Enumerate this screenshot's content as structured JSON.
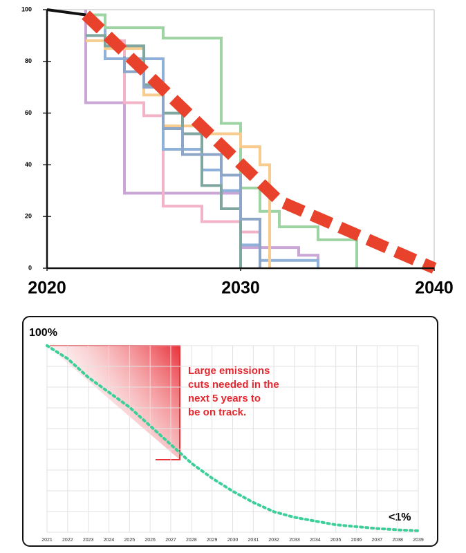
{
  "chart_data": [
    {
      "type": "line",
      "xlim": [
        2020,
        2040
      ],
      "ylim": [
        0,
        100
      ],
      "xticks": [
        2020,
        2030,
        2040
      ],
      "yticks": [
        0,
        20,
        40,
        60,
        80,
        100
      ],
      "series": [
        {
          "name": null,
          "color": "#c9a6d6",
          "x": [
            2022,
            2022,
            2024,
            2024,
            2030,
            2030,
            2033,
            2033,
            2034,
            2034
          ],
          "values": [
            100,
            64,
            64,
            29,
            29,
            8,
            8,
            5,
            5,
            0
          ]
        },
        {
          "name": null,
          "color": "#f2b3c7",
          "x": [
            2022,
            2023,
            2023,
            2024,
            2024,
            2025,
            2025,
            2026,
            2026,
            2028,
            2028,
            2030,
            2030,
            2031,
            2031
          ],
          "values": [
            98,
            98,
            88,
            88,
            64,
            64,
            59,
            59,
            24,
            24,
            18,
            18,
            14,
            14,
            0
          ]
        },
        {
          "name": null,
          "color": "#8fb0d9",
          "x": [
            2023,
            2023,
            2026,
            2026,
            2028,
            2028,
            2029,
            2029,
            2030,
            2030,
            2031,
            2031,
            2034,
            2034
          ],
          "values": [
            96,
            81,
            81,
            46,
            46,
            38,
            38,
            30,
            30,
            9,
            9,
            3,
            3,
            0
          ]
        },
        {
          "name": null,
          "color": "#9ed3a4",
          "x": [
            2022,
            2023,
            2023,
            2026,
            2026,
            2029,
            2029,
            2030,
            2030,
            2031,
            2031,
            2032,
            2032,
            2034,
            2034,
            2036,
            2036
          ],
          "values": [
            98,
            98,
            93,
            93,
            89,
            89,
            56,
            56,
            31,
            31,
            22,
            22,
            16,
            16,
            11,
            11,
            0
          ]
        },
        {
          "name": null,
          "color": "#f8cc8e",
          "x": [
            2022,
            2023,
            2023,
            2025,
            2025,
            2026,
            2026,
            2028,
            2028,
            2030,
            2030,
            2031,
            2031,
            2031.5,
            2031.5
          ],
          "values": [
            88,
            88,
            85,
            85,
            67,
            67,
            55,
            55,
            52,
            52,
            47,
            47,
            40,
            40,
            0
          ]
        },
        {
          "name": null,
          "color": "#7fa69f",
          "x": [
            2022,
            2023,
            2023,
            2025,
            2025,
            2026,
            2026,
            2027,
            2027,
            2028,
            2028,
            2029,
            2029,
            2030,
            2030
          ],
          "values": [
            90,
            90,
            86,
            86,
            71,
            71,
            60,
            60,
            52,
            52,
            32,
            32,
            23,
            23,
            0
          ]
        },
        {
          "name": null,
          "color": "#8da6c8",
          "x": [
            2024,
            2024,
            2025,
            2025,
            2026,
            2026,
            2027,
            2027,
            2029,
            2029,
            2030,
            2030,
            2031,
            2031
          ],
          "values": [
            82,
            76,
            76,
            70,
            70,
            54,
            54,
            44,
            44,
            36,
            36,
            19,
            19,
            0
          ]
        },
        {
          "name": null,
          "color": "#111111",
          "x": [
            2020,
            2022
          ],
          "values": [
            100,
            98
          ]
        },
        {
          "name": null,
          "color": "#e8412c",
          "dashed": true,
          "x": [
            2022,
            2032,
            2040
          ],
          "values": [
            98,
            26,
            0
          ]
        }
      ]
    },
    {
      "type": "line",
      "start_label": "100%",
      "end_label": "<1%",
      "annotation": [
        "Large emissions",
        "cuts needed in the",
        "next 5 years to",
        "be on track."
      ],
      "ylim": [
        0,
        100
      ],
      "categories": [
        "2021",
        "2022",
        "2023",
        "2024",
        "2025",
        "2026",
        "2027",
        "2028",
        "2029",
        "2030",
        "2031",
        "2032",
        "2033",
        "2034",
        "2035",
        "2036",
        "2037",
        "2038",
        "2039"
      ],
      "series": [
        {
          "name": null,
          "color": "#3ccf9a",
          "values": [
            100,
            93,
            83,
            75,
            67,
            57,
            47,
            37,
            29,
            22,
            16,
            11,
            8,
            6,
            4,
            3,
            2,
            1.3,
            0.8
          ]
        }
      ]
    }
  ]
}
